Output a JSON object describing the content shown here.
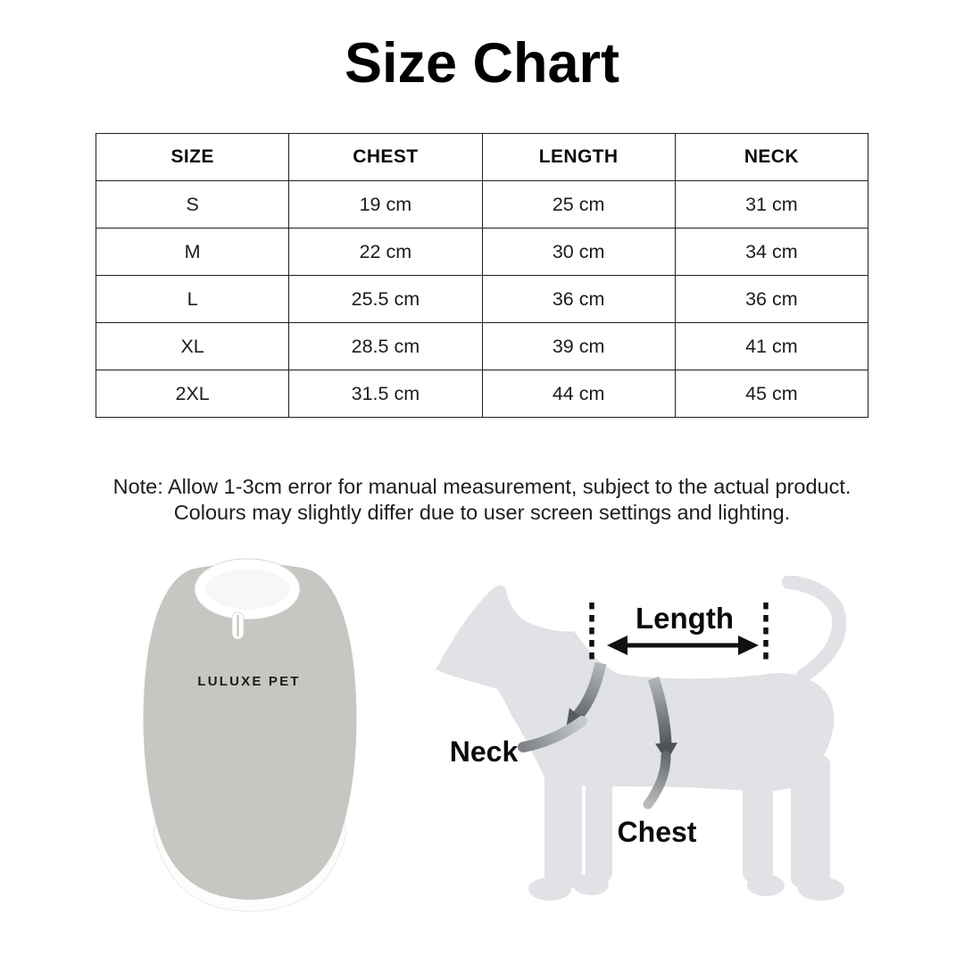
{
  "title": "Size Chart",
  "table": {
    "headers": [
      "SIZE",
      "CHEST",
      "LENGTH",
      "NECK"
    ],
    "rows": [
      [
        "S",
        "19 cm",
        "25 cm",
        "31 cm"
      ],
      [
        "M",
        "22 cm",
        "30 cm",
        "34 cm"
      ],
      [
        "L",
        "25.5 cm",
        "36 cm",
        "36 cm"
      ],
      [
        "XL",
        "28.5 cm",
        "39 cm",
        "41 cm"
      ],
      [
        "2XL",
        "31.5 cm",
        "44 cm",
        "45 cm"
      ]
    ]
  },
  "note": {
    "line1": "Note: Allow 1-3cm error for manual measurement, subject to the actual product.",
    "line2": "Colours may slightly differ due to user screen settings and lighting."
  },
  "shirt": {
    "brand_label": "LULUXE PET"
  },
  "diagram": {
    "length_label": "Length",
    "neck_label": "Neck",
    "chest_label": "Chest"
  },
  "colors": {
    "background": "#ffffff",
    "text": "#000000",
    "table_border": "#1f1f1f",
    "shirt_gray": "#c6c7c3",
    "shirt_trim_white": "#ffffff",
    "dog_silhouette_gray": "#e0e2e5",
    "arrow_black": "#111111",
    "arrow_gradient_light": "#b3b6b9",
    "arrow_gradient_dark": "#53565a"
  },
  "chart_data": {
    "type": "table",
    "title": "Size Chart",
    "columns": [
      "SIZE",
      "CHEST",
      "LENGTH",
      "NECK"
    ],
    "rows": [
      [
        "S",
        "19 cm",
        "25 cm",
        "31 cm"
      ],
      [
        "M",
        "22 cm",
        "30 cm",
        "34 cm"
      ],
      [
        "L",
        "25.5 cm",
        "36 cm",
        "36 cm"
      ],
      [
        "XL",
        "28.5 cm",
        "39 cm",
        "41 cm"
      ],
      [
        "2XL",
        "31.5 cm",
        "44 cm",
        "45 cm"
      ]
    ]
  }
}
